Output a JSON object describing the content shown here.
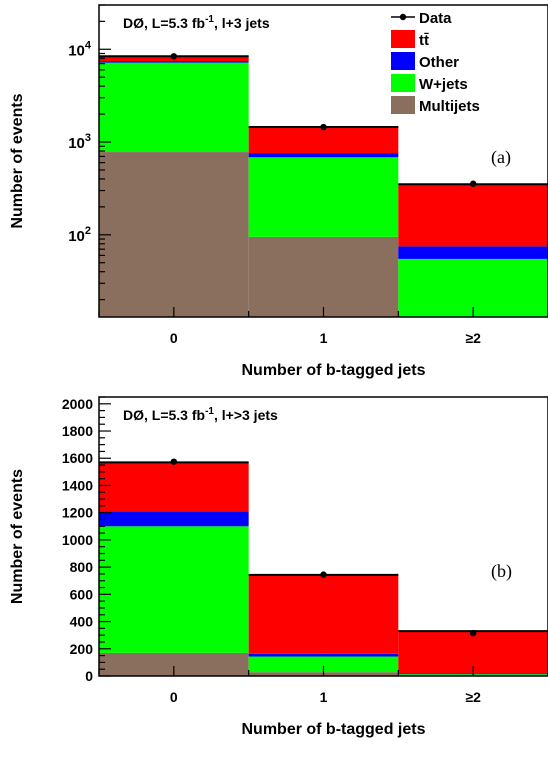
{
  "chart_data": [
    {
      "panel": "a",
      "type": "bar",
      "stacked": true,
      "title": "DØ, L=5.3 fb-1, l+3 jets",
      "label": "(a)",
      "xlabel": "Number of b-tagged jets",
      "ylabel": "Number of events",
      "categories": [
        "0",
        "1",
        "≥2"
      ],
      "yscale": "log",
      "ylim": [
        13,
        30000
      ],
      "yticks": [
        {
          "value": 100,
          "base": "10",
          "exp": "2"
        },
        {
          "value": 1000,
          "base": "10",
          "exp": "3"
        },
        {
          "value": 10000,
          "base": "10",
          "exp": "4"
        }
      ],
      "series": [
        {
          "name": "Multijets",
          "color": "#8b6f5e",
          "values": [
            780,
            95,
            13
          ]
        },
        {
          "name": "W+jets",
          "color": "#00ff00",
          "values": [
            6400,
            590,
            42
          ]
        },
        {
          "name": "Other",
          "color": "#0000ff",
          "values": [
            200,
            75,
            20
          ]
        },
        {
          "name": "tt̄",
          "color": "#ff0000",
          "values": [
            1020,
            690,
            276
          ]
        }
      ],
      "data": {
        "name": "Data",
        "values": [
          8400,
          1450,
          355
        ]
      },
      "legend": {
        "position": "top-right",
        "entries": [
          "Data",
          "tt̄",
          "Other",
          "W+jets",
          "Multijets"
        ]
      }
    },
    {
      "panel": "b",
      "type": "bar",
      "stacked": true,
      "title": "DØ, L=5.3 fb-1, l+>3 jets",
      "label": "(b)",
      "xlabel": "Number of b-tagged jets",
      "ylabel": "Number of events",
      "categories": [
        "0",
        "1",
        "≥2"
      ],
      "yscale": "linear",
      "ylim": [
        0,
        2050
      ],
      "yticks": [
        0,
        200,
        400,
        600,
        800,
        1000,
        1200,
        1400,
        1600,
        1800,
        2000
      ],
      "series": [
        {
          "name": "Multijets",
          "color": "#8b6f5e",
          "values": [
            170,
            28,
            3
          ]
        },
        {
          "name": "W+jets",
          "color": "#00ff00",
          "values": [
            930,
            115,
            10
          ]
        },
        {
          "name": "Other",
          "color": "#0000ff",
          "values": [
            110,
            20,
            7
          ]
        },
        {
          "name": "tt̄",
          "color": "#ff0000",
          "values": [
            360,
            580,
            310
          ]
        }
      ],
      "data": {
        "name": "Data",
        "values": [
          1575,
          745,
          315
        ]
      }
    }
  ]
}
